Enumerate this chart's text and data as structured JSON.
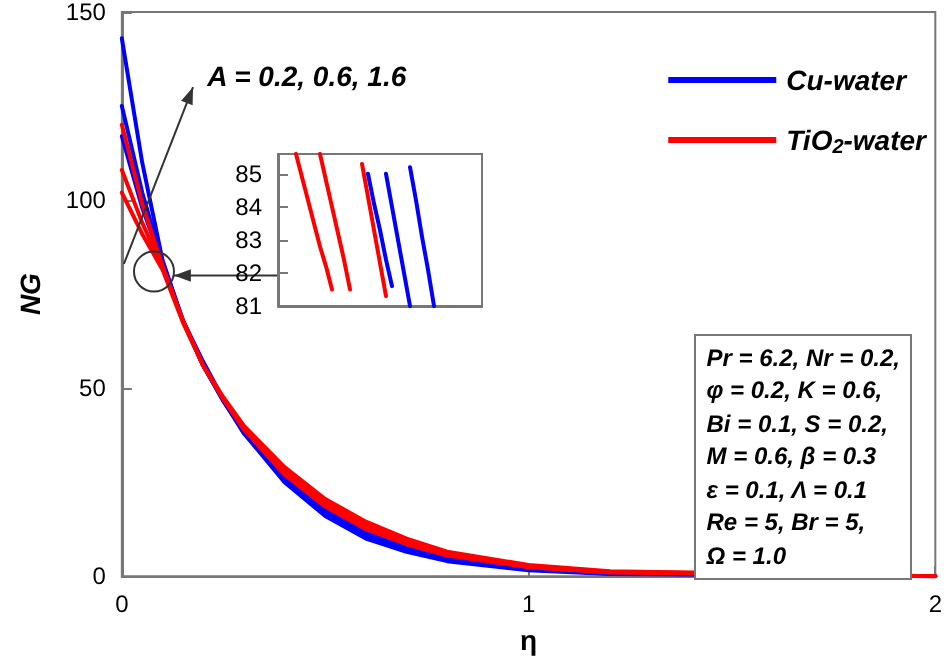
{
  "chart_data": [
    {
      "type": "line",
      "xlabel": "η",
      "ylabel": "NG",
      "xlim": [
        0,
        2
      ],
      "xticks": [
        0,
        1,
        2
      ],
      "ylim": [
        0,
        150
      ],
      "yticks": [
        0,
        50,
        100,
        150
      ],
      "grid": false,
      "legend": "top right",
      "marker": "none",
      "line_style": "solid",
      "x": [
        0,
        0.05,
        0.1,
        0.15,
        0.2,
        0.25,
        0.3,
        0.4,
        0.5,
        0.6,
        0.7,
        0.8,
        1.0,
        1.2,
        2.0
      ],
      "annotations": [
        "A = 0.2, 0.6, 1.6",
        "Pr = 6.2, Nr = 0.2,",
        "φ = 0.2, K = 0.6,",
        "Bi = 0.1, S = 0.2,",
        "M = 0.6, β = 0.3",
        "ε = 0.1, Λ = 0.1",
        "Re = 5, Br = 5,",
        "Ω = 1.0"
      ],
      "series": [
        {
          "name": "Cu-water",
          "color": "#0000ff",
          "values": [
            143,
            110,
            84,
            68,
            57,
            47,
            38,
            25,
            16,
            10,
            6.5,
            4,
            1.6,
            0.6,
            0
          ]
        },
        {
          "color": "#0000ff",
          "values": [
            125,
            102,
            83.5,
            68,
            56,
            46.5,
            38,
            26,
            17,
            11,
            7,
            4.5,
            1.8,
            0.7,
            0
          ]
        },
        {
          "color": "#0000ff",
          "values": [
            117,
            98,
            83,
            68,
            56,
            46.5,
            38.5,
            26.5,
            17.5,
            11.5,
            7.5,
            5,
            2,
            0.8,
            0
          ]
        },
        {
          "name": "TiO$_{2}$-water",
          "color": "#ff0000",
          "values": [
            120,
            99,
            82.5,
            68,
            56,
            47,
            39,
            27,
            18.5,
            12.5,
            8.5,
            5.5,
            2.4,
            1,
            0
          ]
        },
        {
          "color": "#ff0000",
          "values": [
            108,
            94,
            82,
            68,
            56,
            47,
            39.5,
            28,
            19.5,
            13.5,
            9,
            6,
            2.7,
            1.2,
            0
          ]
        },
        {
          "color": "#ff0000",
          "values": [
            102,
            91,
            81.5,
            67.5,
            56,
            47.5,
            40,
            29,
            20.5,
            14.5,
            10,
            6.5,
            3,
            1.3,
            0
          ]
        }
      ]
    },
    {
      "type": "line",
      "categories": [
        null,
        null,
        null,
        null,
        null,
        null,
        null,
        null,
        null,
        null,
        null,
        null,
        null,
        null,
        null,
        null,
        null,
        null,
        null,
        null,
        null,
        null,
        null,
        null,
        null,
        null,
        null,
        null,
        null,
        null,
        null,
        null,
        null,
        null,
        null
      ],
      "ylim": [
        81,
        85.6
      ],
      "yticks": [
        81,
        82,
        83,
        84,
        85
      ],
      "tick_labels": "y",
      "grid": false,
      "legend": false,
      "marker": "none",
      "series": [
        {
          "color": "#ff0000",
          "values": [
            null,
            null,
            null,
            85.6,
            84.9,
            84.2,
            83.5,
            82.8,
            82.2,
            81.5,
            null,
            null,
            null,
            null,
            null,
            null,
            null,
            null,
            null,
            null,
            null,
            null,
            null,
            null,
            null,
            null,
            null,
            null,
            null,
            null,
            null,
            null,
            null,
            null,
            null
          ]
        },
        {
          "color": "#ff0000",
          "values": [
            null,
            null,
            null,
            null,
            null,
            null,
            null,
            85.6,
            84.8,
            84.0,
            83.2,
            82.4,
            81.5,
            null,
            null,
            null,
            null,
            null,
            null,
            null,
            null,
            null,
            null,
            null,
            null,
            null,
            null,
            null,
            null,
            null,
            null,
            null,
            null,
            null,
            null
          ]
        },
        {
          "color": "#ff0000",
          "values": [
            null,
            null,
            null,
            null,
            null,
            null,
            null,
            null,
            null,
            null,
            null,
            null,
            null,
            null,
            85.3,
            84.3,
            83.3,
            82.3,
            81.3,
            null,
            null,
            null,
            null,
            null,
            null,
            null,
            null,
            null,
            null,
            null,
            null,
            null,
            null,
            null,
            null
          ]
        },
        {
          "color": "#0000ff",
          "values": [
            null,
            null,
            null,
            null,
            null,
            null,
            null,
            null,
            null,
            null,
            null,
            null,
            null,
            null,
            null,
            85.0,
            84.1,
            83.3,
            82.4,
            81.6,
            null,
            null,
            null,
            null,
            null,
            null,
            null,
            null,
            null,
            null,
            null,
            null,
            null,
            null,
            null
          ]
        },
        {
          "color": "#0000ff",
          "values": [
            null,
            null,
            null,
            null,
            null,
            null,
            null,
            null,
            null,
            null,
            null,
            null,
            null,
            null,
            null,
            null,
            null,
            null,
            85.0,
            84.0,
            83.0,
            82.0,
            81.0,
            null,
            null,
            null,
            null,
            null,
            null,
            null,
            null,
            null,
            null,
            null,
            null
          ]
        },
        {
          "color": "#0000ff",
          "values": [
            null,
            null,
            null,
            null,
            null,
            null,
            null,
            null,
            null,
            null,
            null,
            null,
            null,
            null,
            null,
            null,
            null,
            null,
            null,
            null,
            null,
            null,
            85.2,
            84.2,
            83.1,
            82.1,
            81.0,
            null,
            null,
            null,
            null,
            null,
            null,
            null,
            null
          ]
        }
      ]
    }
  ]
}
